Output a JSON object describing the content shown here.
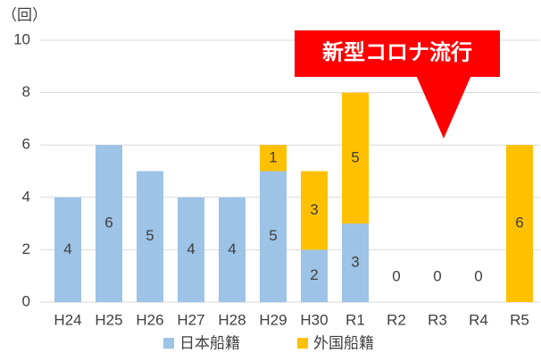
{
  "chart_data": {
    "type": "stacked_bar",
    "y_label": "（回）",
    "annotation": "新型コロナ流行",
    "categories": [
      "H24",
      "H25",
      "H26",
      "H27",
      "H28",
      "H29",
      "H30",
      "R1",
      "R2",
      "R3",
      "R4",
      "R5"
    ],
    "series": [
      {
        "name": "日本船籍",
        "color": "#9dc3e6",
        "values": [
          4,
          6,
          5,
          4,
          4,
          5,
          2,
          3,
          0,
          0,
          0,
          0
        ]
      },
      {
        "name": "外国船籍",
        "color": "#ffc000",
        "values": [
          0,
          0,
          0,
          0,
          0,
          1,
          3,
          5,
          0,
          0,
          0,
          6
        ]
      }
    ],
    "ylim": [
      0,
      10
    ],
    "yticks": [
      0,
      2,
      4,
      6,
      8,
      10
    ],
    "grid": true,
    "legend": "bottom"
  }
}
